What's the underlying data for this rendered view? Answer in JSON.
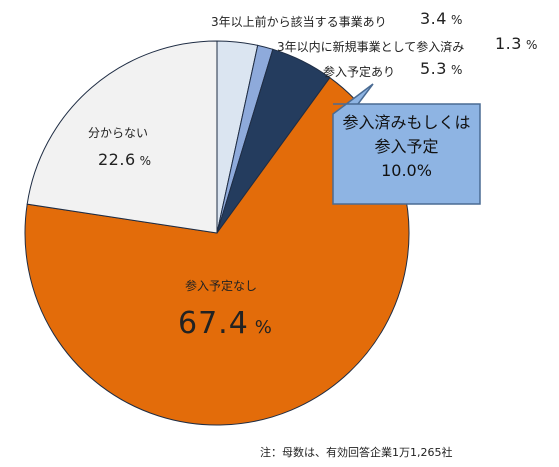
{
  "chart_data": {
    "type": "pie",
    "slices": [
      {
        "label": "3年以上前から該当する事業あり",
        "value": 3.4,
        "color": "#dbe5f1"
      },
      {
        "label": "3年以内に新規事業として参入済み",
        "value": 1.3,
        "color": "#8eaadb"
      },
      {
        "label": "参入予定あり",
        "value": 5.3,
        "color": "#243c5e"
      },
      {
        "label": "参入予定なし",
        "value": 67.4,
        "color": "#e36c0a"
      },
      {
        "label": "分からない",
        "value": 22.6,
        "color": "#f2f2f2"
      }
    ],
    "unit": "%"
  },
  "labels": {
    "s0_name": "3年以上前から該当する事業あり",
    "s0_value": "3.4",
    "s1_name": "3年以内に新規事業として参入済み",
    "s1_value": "1.3",
    "s2_name": "参入予定あり",
    "s2_value": "5.3",
    "s3_name": "参入予定なし",
    "s3_value": "67.4",
    "s4_name": "分からない",
    "s4_value": "22.6",
    "unit": "%"
  },
  "callout": {
    "line1": "参入済みもしくは",
    "line2": "参入予定",
    "line3": "10.0%",
    "fill": "#8eb4e3",
    "stroke": "#4a6b93"
  },
  "note": "注：母数は、有効回答企業1万1,265社"
}
